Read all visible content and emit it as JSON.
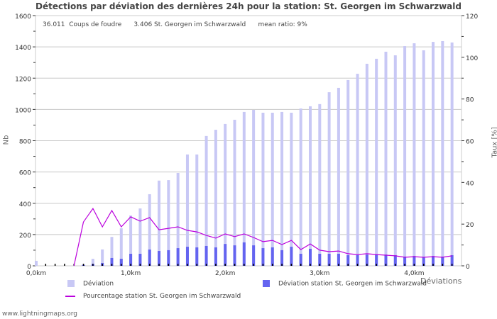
{
  "title": "Détections par déviation des dernières 24h pour la station: St. Georgen im Schwarzwald",
  "stats": {
    "strokes": "36.011",
    "strokes_label": "Coups de foudre",
    "station_count": "3.406",
    "station_label": "St. Georgen im Schwarzwald",
    "mean_ratio": "mean ratio: 9%"
  },
  "axes": {
    "y_left_label": "Nb",
    "y_right_label": "Taux [%]",
    "x_label": "Déviations",
    "y_left_ticks": [
      "0",
      "200",
      "400",
      "600",
      "800",
      "1000",
      "1200",
      "1400",
      "1600"
    ],
    "y_right_ticks": [
      "0",
      "20",
      "40",
      "60",
      "80",
      "100",
      "120"
    ],
    "x_ticks": [
      "0,0km",
      "1,0km",
      "2,0km",
      "3,0km",
      "4,0km"
    ]
  },
  "legend": {
    "deviation": "Déviation",
    "station_deviation": "Déviation station St. Georgen im Schwarzwald",
    "percentage": "Pourcentage station St. Georgen im Schwarzwald"
  },
  "footer": "www.lightningmaps.org",
  "colors": {
    "deviation": "#c8c8f5",
    "station": "#6464f0",
    "line": "#bb00dd",
    "grid": "#c8c8c8"
  },
  "chart_data": {
    "type": "bar",
    "title": "Détections par déviation des dernières 24h pour la station: St. Georgen im Schwarzwald",
    "xlabel": "Déviations",
    "ylabel": "Nb",
    "y2label": "Taux [%]",
    "ylim": [
      0,
      1600
    ],
    "y2lim": [
      0,
      120
    ],
    "grid": true,
    "legend_position": "bottom",
    "x": [
      0.0,
      0.1,
      0.2,
      0.3,
      0.4,
      0.5,
      0.6,
      0.7,
      0.8,
      0.9,
      1.0,
      1.1,
      1.2,
      1.3,
      1.4,
      1.5,
      1.6,
      1.7,
      1.8,
      1.9,
      2.0,
      2.1,
      2.2,
      2.3,
      2.4,
      2.5,
      2.6,
      2.7,
      2.8,
      2.9,
      3.0,
      3.1,
      3.2,
      3.3,
      3.4,
      3.5,
      3.6,
      3.7,
      3.8,
      3.9,
      4.0,
      4.1,
      4.2,
      4.3,
      4.4
    ],
    "series": [
      {
        "name": "Déviation",
        "type": "bar",
        "axis": "left",
        "values": [
          32,
          0,
          0,
          0,
          0,
          10,
          45,
          105,
          185,
          240,
          322,
          367,
          458,
          545,
          548,
          594,
          712,
          712,
          830,
          870,
          907,
          934,
          984,
          997,
          979,
          979,
          984,
          979,
          1006,
          1020,
          1034,
          1110,
          1138,
          1188,
          1228,
          1292,
          1324,
          1369,
          1346,
          1405,
          1423,
          1378,
          1432,
          1437,
          1428
        ]
      },
      {
        "name": "Déviation station St. Georgen im Schwarzwald",
        "type": "bar",
        "axis": "left",
        "values": [
          0,
          0,
          0,
          0,
          0,
          5,
          12,
          18,
          50,
          45,
          77,
          77,
          104,
          95,
          100,
          113,
          122,
          118,
          127,
          118,
          140,
          131,
          150,
          131,
          113,
          118,
          100,
          122,
          77,
          109,
          77,
          77,
          77,
          68,
          68,
          72,
          72,
          72,
          68,
          59,
          63,
          54,
          63,
          59,
          68
        ]
      },
      {
        "name": "Pourcentage station St. Georgen im Schwarzwald",
        "type": "line",
        "axis": "right",
        "values": [
          null,
          null,
          null,
          null,
          0,
          21,
          27.5,
          18.7,
          26.5,
          18.7,
          23.5,
          21.4,
          23.1,
          17.3,
          18,
          18.7,
          17,
          16.3,
          14.6,
          13.3,
          15.3,
          14,
          15.3,
          13.6,
          11.6,
          12.2,
          10.2,
          12.2,
          7.8,
          10.5,
          7.5,
          6.8,
          7.1,
          5.8,
          5.4,
          5.8,
          5.4,
          5.1,
          4.8,
          4.1,
          4.4,
          4.1,
          4.4,
          4.1,
          4.8
        ]
      }
    ]
  }
}
